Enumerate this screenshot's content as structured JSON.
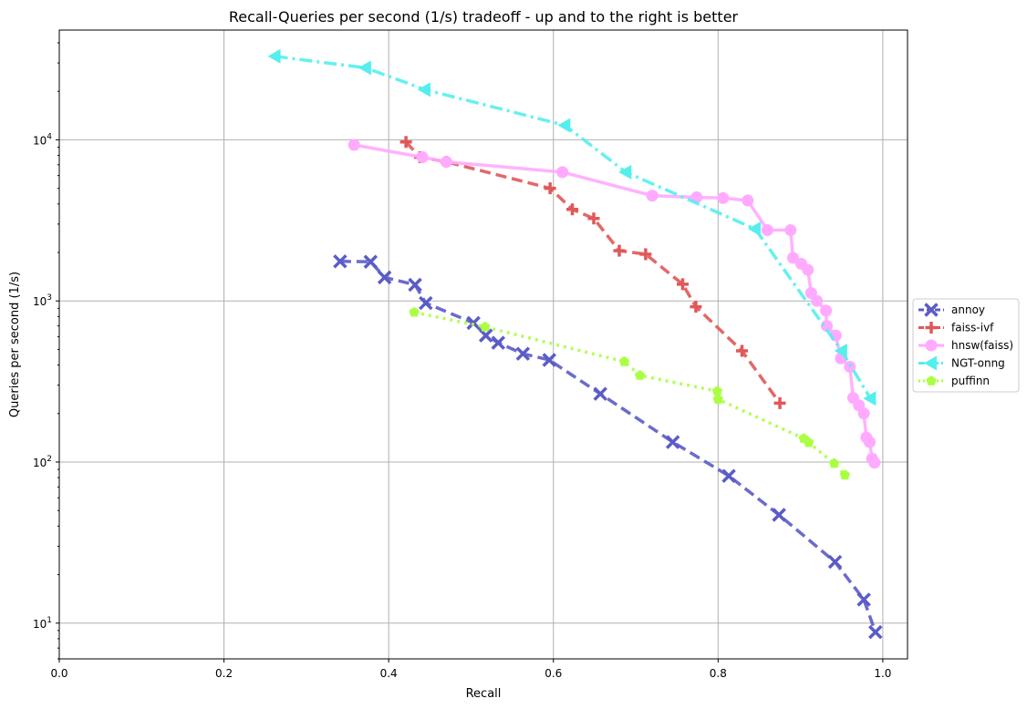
{
  "chart_data": {
    "type": "line",
    "title": "Recall-Queries per second (1/s) tradeoff - up and to the right is better",
    "xlabel": "Recall",
    "ylabel": "Queries per second (1/s)",
    "xlim": [
      0.0,
      1.03
    ],
    "ylim": [
      6,
      48000
    ],
    "yscale": "log",
    "grid": true,
    "legend_position": "right-outside",
    "x_ticks": [
      {
        "value": 0.0,
        "label": "0.0"
      },
      {
        "value": 0.2,
        "label": "0.2"
      },
      {
        "value": 0.4,
        "label": "0.4"
      },
      {
        "value": 0.6,
        "label": "0.6"
      },
      {
        "value": 0.8,
        "label": "0.8"
      },
      {
        "value": 1.0,
        "label": "1.0"
      }
    ],
    "y_ticks": [
      {
        "value": 10,
        "base": "10",
        "exp": "1"
      },
      {
        "value": 100,
        "base": "10",
        "exp": "2"
      },
      {
        "value": 1000,
        "base": "10",
        "exp": "3"
      },
      {
        "value": 10000,
        "base": "10",
        "exp": "4"
      }
    ],
    "series": [
      {
        "name": "annoy",
        "color": "#5b5bc8",
        "dash": "dashed",
        "marker": "x",
        "points": [
          [
            0.341,
            1760
          ],
          [
            0.378,
            1750
          ],
          [
            0.395,
            1400
          ],
          [
            0.432,
            1260
          ],
          [
            0.445,
            970
          ],
          [
            0.503,
            730
          ],
          [
            0.518,
            610
          ],
          [
            0.533,
            550
          ],
          [
            0.563,
            470
          ],
          [
            0.595,
            430
          ],
          [
            0.657,
            265
          ],
          [
            0.745,
            133
          ],
          [
            0.813,
            82
          ],
          [
            0.874,
            47
          ],
          [
            0.942,
            24
          ],
          [
            0.977,
            14
          ],
          [
            0.991,
            8.8
          ]
        ]
      },
      {
        "name": "faiss-ivf",
        "color": "#e05858",
        "dash": "dashed",
        "marker": "plus",
        "points": [
          [
            0.421,
            9700
          ],
          [
            0.438,
            7800
          ],
          [
            0.47,
            7300
          ],
          [
            0.596,
            5000
          ],
          [
            0.623,
            3700
          ],
          [
            0.649,
            3250
          ],
          [
            0.68,
            2050
          ],
          [
            0.712,
            1950
          ],
          [
            0.757,
            1270
          ],
          [
            0.773,
            920
          ],
          [
            0.829,
            490
          ],
          [
            0.875,
            232
          ]
        ]
      },
      {
        "name": "hnsw(faiss)",
        "color": "#ffaaff",
        "dash": "solid",
        "marker": "circle",
        "points": [
          [
            0.358,
            9300
          ],
          [
            0.441,
            7800
          ],
          [
            0.47,
            7300
          ],
          [
            0.611,
            6300
          ],
          [
            0.72,
            4500
          ],
          [
            0.774,
            4400
          ],
          [
            0.806,
            4350
          ],
          [
            0.836,
            4200
          ],
          [
            0.86,
            2750
          ],
          [
            0.888,
            2750
          ],
          [
            0.891,
            1850
          ],
          [
            0.901,
            1700
          ],
          [
            0.909,
            1560
          ],
          [
            0.913,
            1120
          ],
          [
            0.92,
            1000
          ],
          [
            0.931,
            870
          ],
          [
            0.932,
            700
          ],
          [
            0.943,
            610
          ],
          [
            0.949,
            440
          ],
          [
            0.96,
            390
          ],
          [
            0.964,
            250
          ],
          [
            0.971,
            225
          ],
          [
            0.977,
            200
          ],
          [
            0.98,
            142
          ],
          [
            0.984,
            133
          ],
          [
            0.987,
            105
          ],
          [
            0.99,
            99
          ]
        ]
      },
      {
        "name": "NGT-onng",
        "color": "#55eeee",
        "dash": "dashdot",
        "marker": "triangle-left",
        "points": [
          [
            0.262,
            33000
          ],
          [
            0.372,
            28000
          ],
          [
            0.444,
            20500
          ],
          [
            0.614,
            12300
          ],
          [
            0.688,
            6300
          ],
          [
            0.845,
            2800
          ],
          [
            0.95,
            490
          ],
          [
            0.985,
            248
          ]
        ]
      },
      {
        "name": "puffinn",
        "color": "#aaff44",
        "dash": "dotted",
        "marker": "pentagon",
        "points": [
          [
            0.431,
            850
          ],
          [
            0.517,
            690
          ],
          [
            0.686,
            420
          ],
          [
            0.705,
            345
          ],
          [
            0.799,
            275
          ],
          [
            0.8,
            245
          ],
          [
            0.904,
            140
          ],
          [
            0.91,
            132
          ],
          [
            0.941,
            98
          ],
          [
            0.954,
            83
          ]
        ]
      }
    ]
  }
}
